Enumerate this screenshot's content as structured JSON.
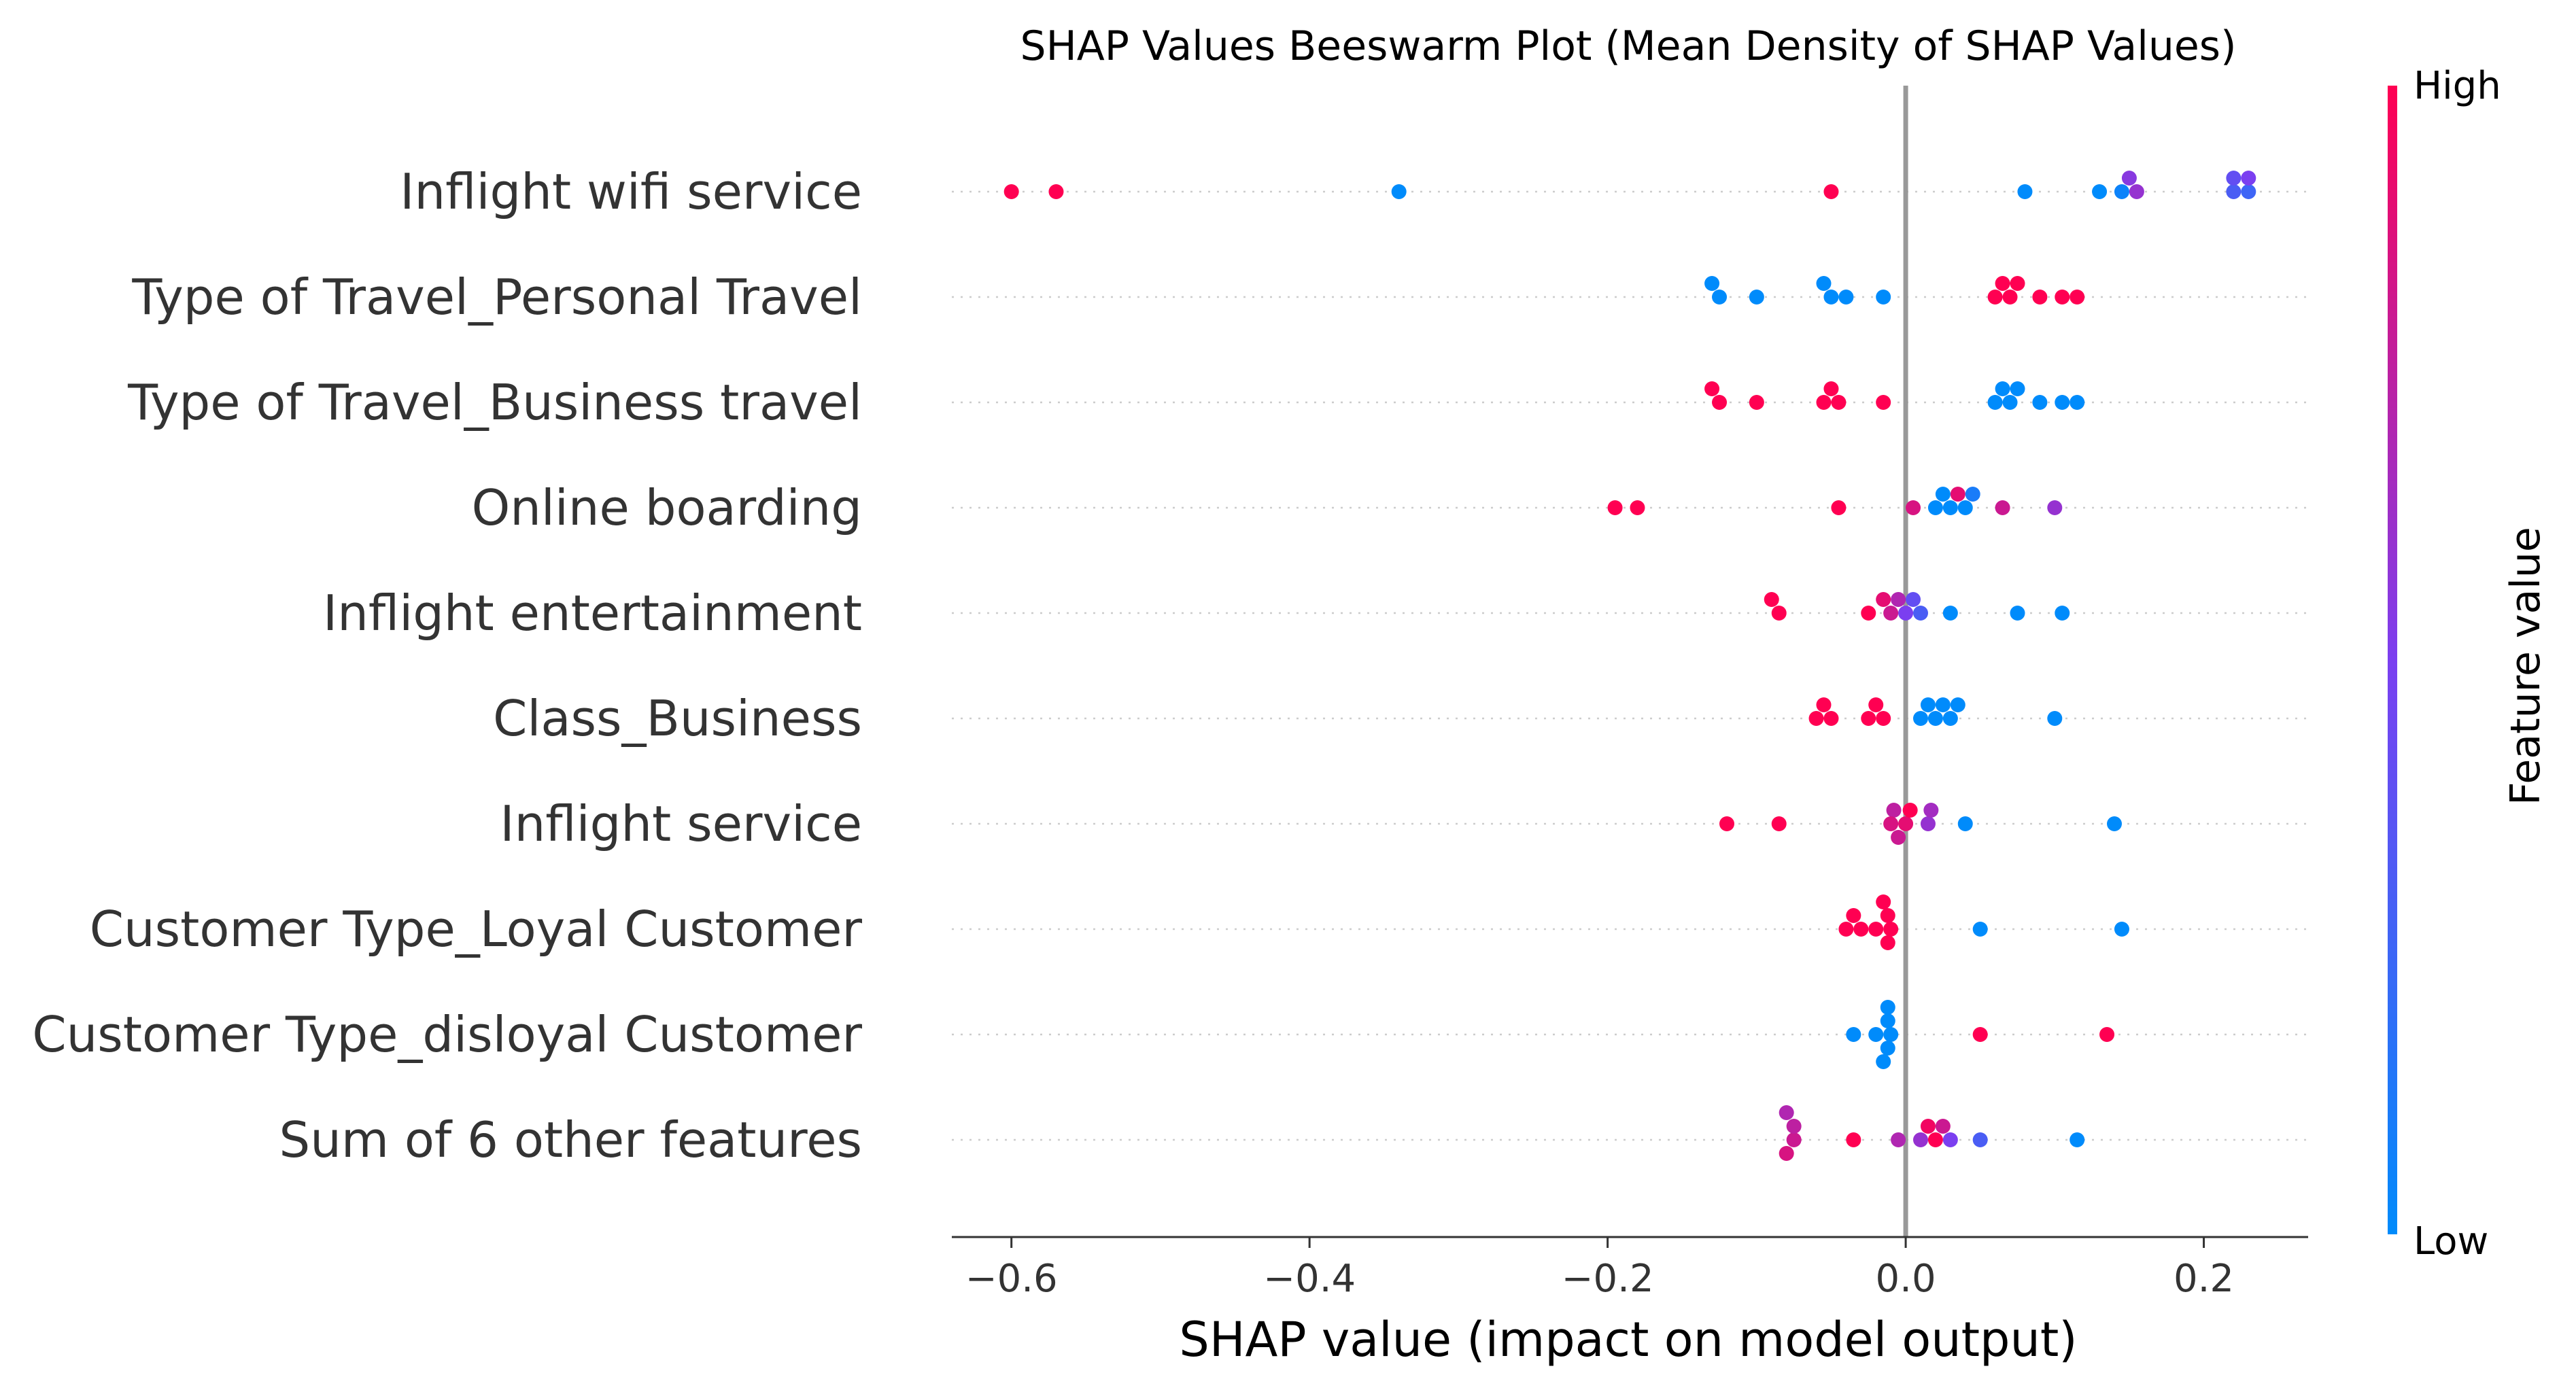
{
  "chart_data": {
    "type": "scatter",
    "subtype": "beeswarm",
    "title": "SHAP Values Beeswarm Plot (Mean Density of SHAP Values)",
    "xlabel": "SHAP value (impact on model output)",
    "xlim": [
      -0.64,
      0.27
    ],
    "xticks": [
      -0.6,
      -0.4,
      -0.2,
      0.0,
      0.2
    ],
    "xtick_labels": [
      "−0.6",
      "−0.4",
      "−0.2",
      "0.0",
      "0.2"
    ],
    "grid": false,
    "zero_line": true,
    "colorbar": {
      "title": "Feature value",
      "high_label": "High",
      "low_label": "Low",
      "high_color": "#ff0052",
      "low_color": "#008bfb"
    },
    "features": [
      {
        "name": "Inflight wifi service",
        "points": [
          {
            "x": -0.6,
            "v": 1.0
          },
          {
            "x": -0.57,
            "v": 1.0
          },
          {
            "x": -0.34,
            "v": 0.0
          },
          {
            "x": -0.05,
            "v": 1.0
          },
          {
            "x": 0.08,
            "v": 0.0
          },
          {
            "x": 0.13,
            "v": 0.0
          },
          {
            "x": 0.145,
            "v": 0.05
          },
          {
            "x": 0.15,
            "v": 0.55
          },
          {
            "x": 0.155,
            "v": 0.6
          },
          {
            "x": 0.22,
            "v": 0.3
          },
          {
            "x": 0.23,
            "v": 0.25
          },
          {
            "x": 0.22,
            "v": 0.4
          },
          {
            "x": 0.23,
            "v": 0.5
          }
        ]
      },
      {
        "name": "Type of Travel_Personal Travel",
        "points": [
          {
            "x": -0.13,
            "v": 0.0
          },
          {
            "x": -0.125,
            "v": 0.0
          },
          {
            "x": -0.1,
            "v": 0.0
          },
          {
            "x": -0.055,
            "v": 0.0
          },
          {
            "x": -0.05,
            "v": 0.0
          },
          {
            "x": -0.04,
            "v": 0.0
          },
          {
            "x": -0.015,
            "v": 0.0
          },
          {
            "x": 0.06,
            "v": 1.0
          },
          {
            "x": 0.065,
            "v": 1.0
          },
          {
            "x": 0.07,
            "v": 1.0
          },
          {
            "x": 0.075,
            "v": 1.0
          },
          {
            "x": 0.09,
            "v": 1.0
          },
          {
            "x": 0.105,
            "v": 1.0
          },
          {
            "x": 0.115,
            "v": 1.0
          }
        ]
      },
      {
        "name": "Type of Travel_Business travel",
        "points": [
          {
            "x": -0.13,
            "v": 1.0
          },
          {
            "x": -0.125,
            "v": 1.0
          },
          {
            "x": -0.1,
            "v": 1.0
          },
          {
            "x": -0.055,
            "v": 1.0
          },
          {
            "x": -0.05,
            "v": 1.0
          },
          {
            "x": -0.045,
            "v": 1.0
          },
          {
            "x": -0.015,
            "v": 1.0
          },
          {
            "x": 0.06,
            "v": 0.0
          },
          {
            "x": 0.065,
            "v": 0.0
          },
          {
            "x": 0.07,
            "v": 0.0
          },
          {
            "x": 0.075,
            "v": 0.0
          },
          {
            "x": 0.09,
            "v": 0.0
          },
          {
            "x": 0.105,
            "v": 0.0
          },
          {
            "x": 0.115,
            "v": 0.0
          }
        ]
      },
      {
        "name": "Online boarding",
        "points": [
          {
            "x": -0.195,
            "v": 1.0
          },
          {
            "x": -0.18,
            "v": 1.0
          },
          {
            "x": -0.045,
            "v": 1.0
          },
          {
            "x": 0.005,
            "v": 0.85
          },
          {
            "x": 0.02,
            "v": 0.0
          },
          {
            "x": 0.025,
            "v": 0.0
          },
          {
            "x": 0.03,
            "v": 0.0
          },
          {
            "x": 0.035,
            "v": 0.9
          },
          {
            "x": 0.04,
            "v": 0.0
          },
          {
            "x": 0.045,
            "v": 0.1
          },
          {
            "x": 0.065,
            "v": 0.8
          },
          {
            "x": 0.1,
            "v": 0.6
          }
        ]
      },
      {
        "name": "Inflight entertainment",
        "points": [
          {
            "x": -0.09,
            "v": 1.0
          },
          {
            "x": -0.085,
            "v": 1.0
          },
          {
            "x": -0.025,
            "v": 1.0
          },
          {
            "x": -0.015,
            "v": 0.9
          },
          {
            "x": -0.01,
            "v": 0.8
          },
          {
            "x": -0.005,
            "v": 0.7
          },
          {
            "x": 0.0,
            "v": 0.5
          },
          {
            "x": 0.005,
            "v": 0.4
          },
          {
            "x": 0.01,
            "v": 0.3
          },
          {
            "x": 0.03,
            "v": 0.0
          },
          {
            "x": 0.075,
            "v": 0.0
          },
          {
            "x": 0.105,
            "v": 0.0
          }
        ]
      },
      {
        "name": "Class_Business",
        "points": [
          {
            "x": -0.06,
            "v": 1.0
          },
          {
            "x": -0.055,
            "v": 1.0
          },
          {
            "x": -0.05,
            "v": 1.0
          },
          {
            "x": -0.025,
            "v": 1.0
          },
          {
            "x": -0.02,
            "v": 1.0
          },
          {
            "x": -0.015,
            "v": 1.0
          },
          {
            "x": 0.01,
            "v": 0.0
          },
          {
            "x": 0.015,
            "v": 0.0
          },
          {
            "x": 0.02,
            "v": 0.0
          },
          {
            "x": 0.025,
            "v": 0.0
          },
          {
            "x": 0.03,
            "v": 0.0
          },
          {
            "x": 0.035,
            "v": 0.0
          },
          {
            "x": 0.1,
            "v": 0.0
          }
        ]
      },
      {
        "name": "Inflight service",
        "points": [
          {
            "x": -0.12,
            "v": 1.0
          },
          {
            "x": -0.085,
            "v": 1.0
          },
          {
            "x": -0.01,
            "v": 0.85
          },
          {
            "x": -0.005,
            "v": 0.8
          },
          {
            "x": -0.008,
            "v": 0.75
          },
          {
            "x": 0.0,
            "v": 0.9
          },
          {
            "x": 0.003,
            "v": 1.0
          },
          {
            "x": 0.015,
            "v": 0.6
          },
          {
            "x": 0.017,
            "v": 0.65
          },
          {
            "x": 0.04,
            "v": 0.0
          },
          {
            "x": 0.14,
            "v": 0.0
          }
        ]
      },
      {
        "name": "Customer Type_Loyal Customer",
        "points": [
          {
            "x": -0.04,
            "v": 1.0
          },
          {
            "x": -0.035,
            "v": 1.0
          },
          {
            "x": -0.03,
            "v": 1.0
          },
          {
            "x": -0.02,
            "v": 1.0
          },
          {
            "x": -0.015,
            "v": 1.0
          },
          {
            "x": -0.01,
            "v": 1.0
          },
          {
            "x": -0.012,
            "v": 1.0
          },
          {
            "x": -0.012,
            "v": 1.0
          },
          {
            "x": 0.05,
            "v": 0.0
          },
          {
            "x": 0.145,
            "v": 0.0
          }
        ]
      },
      {
        "name": "Customer Type_disloyal Customer",
        "points": [
          {
            "x": -0.035,
            "v": 0.0
          },
          {
            "x": -0.02,
            "v": 0.0
          },
          {
            "x": -0.015,
            "v": 0.0
          },
          {
            "x": -0.01,
            "v": 0.0
          },
          {
            "x": -0.012,
            "v": 0.0
          },
          {
            "x": -0.012,
            "v": 0.0
          },
          {
            "x": -0.012,
            "v": 0.0
          },
          {
            "x": 0.05,
            "v": 1.0
          },
          {
            "x": 0.135,
            "v": 1.0
          }
        ]
      },
      {
        "name": "Sum of 6 other features",
        "points": [
          {
            "x": -0.08,
            "v": 0.85
          },
          {
            "x": -0.075,
            "v": 0.8
          },
          {
            "x": -0.075,
            "v": 0.75
          },
          {
            "x": -0.08,
            "v": 0.7
          },
          {
            "x": -0.035,
            "v": 1.0
          },
          {
            "x": -0.005,
            "v": 0.7
          },
          {
            "x": 0.01,
            "v": 0.6
          },
          {
            "x": 0.015,
            "v": 0.95
          },
          {
            "x": 0.02,
            "v": 1.0
          },
          {
            "x": 0.025,
            "v": 0.8
          },
          {
            "x": 0.03,
            "v": 0.5
          },
          {
            "x": 0.05,
            "v": 0.3
          },
          {
            "x": 0.115,
            "v": 0.0
          }
        ]
      }
    ]
  }
}
